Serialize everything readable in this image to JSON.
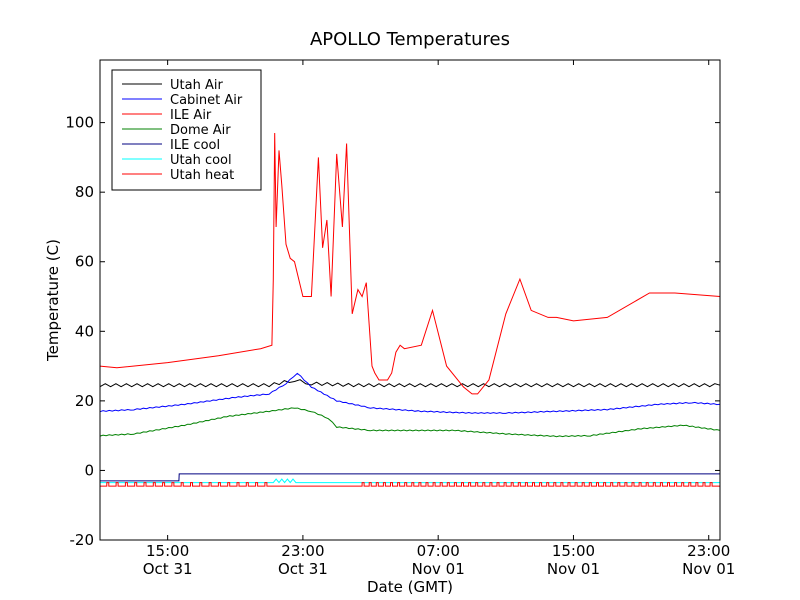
{
  "chart_data": {
    "type": "line",
    "title": "APOLLO Temperatures",
    "xlabel": "Date (GMT)",
    "ylabel": "Temperature (C)",
    "xlim": [
      "Oct 31 11:00",
      "Nov 01 23:40"
    ],
    "ylim": [
      -20,
      118
    ],
    "yticks": [
      -20,
      0,
      20,
      40,
      60,
      80,
      100
    ],
    "xticks": [
      {
        "x": "Oct 31 15:00",
        "time": "15:00",
        "date": "Oct 31"
      },
      {
        "x": "Oct 31 23:00",
        "time": "23:00",
        "date": "Oct 31"
      },
      {
        "x": "Nov 01 07:00",
        "time": "07:00",
        "date": "Nov 01"
      },
      {
        "x": "Nov 01 15:00",
        "time": "15:00",
        "date": "Nov 01"
      },
      {
        "x": "Nov 01 23:00",
        "time": "23:00",
        "date": "Nov 01"
      }
    ],
    "grid": false,
    "legend": "top-left",
    "series": [
      {
        "name": "Utah Air",
        "color": "#000000",
        "x": [
          "Oct 31 11:00",
          "Oct 31 16:00",
          "Oct 31 21:00",
          "Oct 31 22:30",
          "Oct 31 23:30",
          "Nov 01 02:00",
          "Nov 01 05:00",
          "Nov 01 10:00",
          "Nov 01 15:00",
          "Nov 01 20:00",
          "Nov 01 23:40"
        ],
        "values": [
          24.5,
          24.5,
          24.5,
          26,
          25,
          24.5,
          24.5,
          24.5,
          24.5,
          24.5,
          24.5
        ]
      },
      {
        "name": "Cabinet Air",
        "color": "#0000ff",
        "x": [
          "Oct 31 11:00",
          "Oct 31 13:00",
          "Oct 31 16:00",
          "Oct 31 19:00",
          "Oct 31 21:00",
          "Oct 31 22:00",
          "Oct 31 22:40",
          "Oct 31 23:30",
          "Nov 01 01:00",
          "Nov 01 03:00",
          "Nov 01 06:00",
          "Nov 01 09:00",
          "Nov 01 11:00",
          "Nov 01 14:00",
          "Nov 01 17:00",
          "Nov 01 20:00",
          "Nov 01 22:00",
          "Nov 01 23:40"
        ],
        "values": [
          17,
          17.5,
          19,
          21,
          22,
          25,
          28,
          24,
          20,
          18,
          17,
          16.5,
          16.5,
          17,
          17.5,
          19,
          19.5,
          19
        ]
      },
      {
        "name": "ILE Air",
        "color": "#ff0000",
        "x": [
          "Oct 31 11:00",
          "Oct 31 12:00",
          "Oct 31 15:00",
          "Oct 31 18:00",
          "Oct 31 20:30",
          "Oct 31 21:10",
          "Oct 31 21:15",
          "Oct 31 21:20",
          "Oct 31 21:25",
          "Oct 31 21:35",
          "Oct 31 21:45",
          "Oct 31 22:00",
          "Oct 31 22:15",
          "Oct 31 22:30",
          "Oct 31 23:00",
          "Oct 31 23:30",
          "Oct 31 23:55",
          "Nov 01 00:10",
          "Nov 01 00:25",
          "Nov 01 00:40",
          "Nov 01 01:00",
          "Nov 01 01:20",
          "Nov 01 01:35",
          "Nov 01 01:55",
          "Nov 01 02:15",
          "Nov 01 02:30",
          "Nov 01 02:45",
          "Nov 01 03:05",
          "Nov 01 03:15",
          "Nov 01 03:30",
          "Nov 01 04:00",
          "Nov 01 04:15",
          "Nov 01 04:30",
          "Nov 01 04:45",
          "Nov 01 05:00",
          "Nov 01 06:00",
          "Nov 01 06:40",
          "Nov 01 07:30",
          "Nov 01 08:30",
          "Nov 01 09:00",
          "Nov 01 09:20",
          "Nov 01 10:00",
          "Nov 01 11:00",
          "Nov 01 11:50",
          "Nov 01 12:30",
          "Nov 01 13:30",
          "Nov 01 14:00",
          "Nov 01 15:00",
          "Nov 01 17:00",
          "Nov 01 19:30",
          "Nov 01 19:35",
          "Nov 01 21:00",
          "Nov 01 23:40"
        ],
        "values": [
          30,
          29.5,
          31,
          33,
          35,
          36,
          55,
          97,
          70,
          92,
          82,
          65,
          61,
          60,
          50,
          50,
          90,
          64,
          72,
          50,
          91,
          70,
          94,
          45,
          52,
          50,
          54,
          30,
          28,
          26,
          26,
          28,
          34,
          36,
          35,
          36,
          46,
          30,
          24,
          22,
          22,
          26,
          45,
          55,
          46,
          44,
          44,
          43,
          44,
          51,
          51,
          51,
          50
        ]
      },
      {
        "name": "Dome Air",
        "color": "#008000",
        "x": [
          "Oct 31 11:00",
          "Oct 31 13:00",
          "Oct 31 16:00",
          "Oct 31 18:30",
          "Oct 31 21:00",
          "Oct 31 22:30",
          "Oct 31 23:30",
          "Nov 01 00:30",
          "Nov 01 01:00",
          "Nov 01 03:00",
          "Nov 01 05:30",
          "Nov 01 08:00",
          "Nov 01 11:00",
          "Nov 01 14:00",
          "Nov 01 16:00",
          "Nov 01 19:00",
          "Nov 01 21:30",
          "Nov 01 23:40"
        ],
        "values": [
          10,
          10.5,
          13,
          15.5,
          17,
          18,
          17,
          15,
          12.5,
          11.5,
          11.5,
          11.5,
          10.5,
          9.8,
          10,
          12,
          13,
          11.5
        ]
      },
      {
        "name": "ILE cool",
        "color": "#000080",
        "x": [
          "Oct 31 11:00",
          "Oct 31 15:40",
          "Oct 31 15:41",
          "Nov 01 23:40"
        ],
        "values": [
          -3,
          -3,
          -1,
          -1
        ]
      },
      {
        "name": "Utah cool",
        "color": "#00ffff",
        "x": [
          "Oct 31 11:00",
          "Oct 31 21:15",
          "Oct 31 21:25",
          "Oct 31 21:35",
          "Oct 31 21:45",
          "Oct 31 21:55",
          "Oct 31 22:05",
          "Oct 31 22:15",
          "Oct 31 22:25",
          "Oct 31 22:35",
          "Oct 31 22:45",
          "Nov 01 23:40"
        ],
        "values": [
          -3.5,
          -3.5,
          -2.5,
          -3.5,
          -2.5,
          -3.5,
          -2.5,
          -3.5,
          -2.5,
          -3.5,
          -3.5,
          -3.5
        ]
      },
      {
        "name": "Utah heat",
        "color": "#ff0000",
        "values": [
          -4.5
        ],
        "pulse_high": -3.5
      }
    ]
  }
}
